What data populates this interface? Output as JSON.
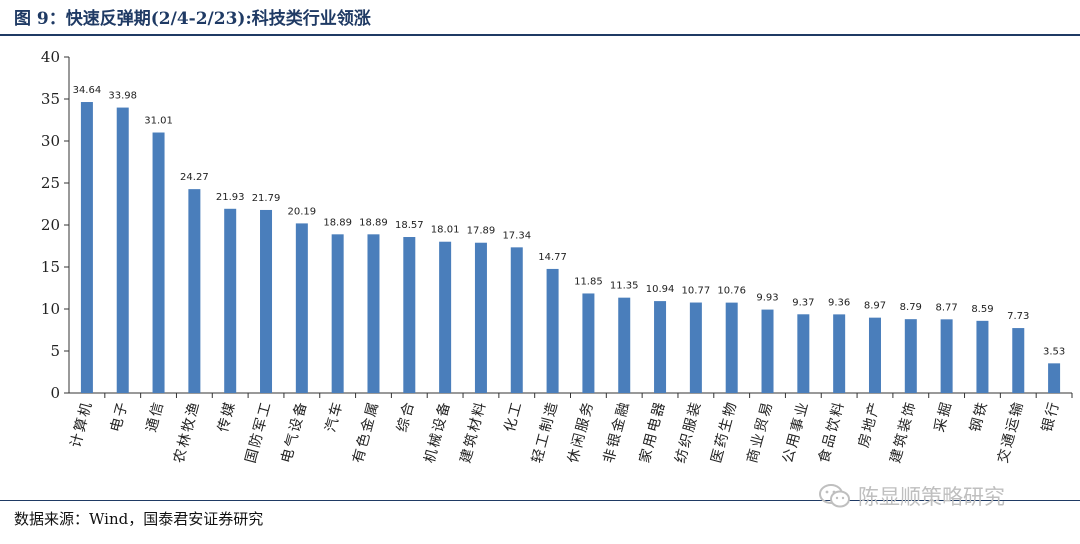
{
  "header": {
    "title": "图 9：快速反弹期(2/4-2/23):科技类行业领涨"
  },
  "footer": {
    "source": "数据来源：Wind，国泰君安证券研究"
  },
  "watermark": {
    "text": "陈显顺策略研究",
    "icon": "wechat-icon"
  },
  "colors": {
    "bar": "#4a7ebb",
    "title": "#1f3a64"
  },
  "chart_data": {
    "type": "bar",
    "title": "",
    "xlabel": "",
    "ylabel": "",
    "ylim": [
      0,
      40
    ],
    "yticks": [
      0,
      5,
      10,
      15,
      20,
      25,
      30,
      35,
      40
    ],
    "grid": false,
    "categories": [
      "计算机",
      "电子",
      "通信",
      "农林牧渔",
      "传媒",
      "国防军工",
      "电气设备",
      "汽车",
      "有色金属",
      "综合",
      "机械设备",
      "建筑材料",
      "化工",
      "轻工制造",
      "休闲服务",
      "非银金融",
      "家用电器",
      "纺织服装",
      "医药生物",
      "商业贸易",
      "公用事业",
      "食品饮料",
      "房地产",
      "建筑装饰",
      "采掘",
      "钢铁",
      "交通运输",
      "银行"
    ],
    "values": [
      34.64,
      33.98,
      31.01,
      24.27,
      21.93,
      21.79,
      20.19,
      18.89,
      18.89,
      18.57,
      18.01,
      17.89,
      17.34,
      14.77,
      11.85,
      11.35,
      10.94,
      10.77,
      10.76,
      9.93,
      9.37,
      9.36,
      8.97,
      8.79,
      8.77,
      8.59,
      7.73,
      3.53
    ],
    "data_labels": [
      "34.64",
      "33.98",
      "31.01",
      "24.27",
      "21.93",
      "21.79",
      "20.19",
      "18.89",
      "18.89",
      "18.57",
      "18.01",
      "17.89",
      "17.34",
      "14.77",
      "11.85",
      "11.35",
      "10.94",
      "10.77",
      "10.76",
      "9.93",
      "9.37",
      "9.36",
      "8.97",
      "8.79",
      "8.77",
      "8.59",
      "7.73",
      "3.53"
    ]
  }
}
